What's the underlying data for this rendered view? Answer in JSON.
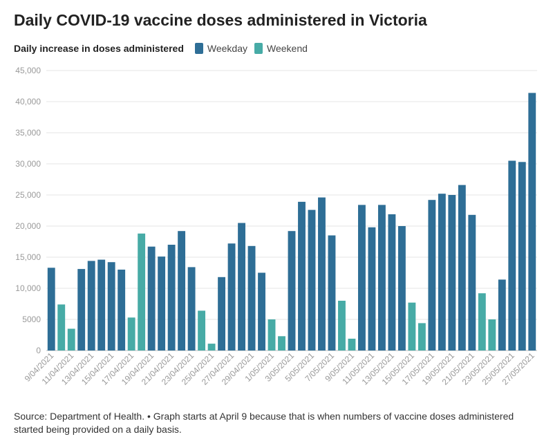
{
  "chart_data": {
    "type": "bar",
    "title": "Daily COVID-19 vaccine doses administered in Victoria",
    "legend_title": "Daily increase in doses administered",
    "series": [
      {
        "name": "Weekday",
        "color": "#2e6e96"
      },
      {
        "name": "Weekend",
        "color": "#47aba6"
      }
    ],
    "categories": [
      "9/04/2021",
      "10/04/2021",
      "11/04/2021",
      "12/04/2021",
      "13/04/2021",
      "14/04/2021",
      "15/04/2021",
      "16/04/2021",
      "17/04/2021",
      "18/04/2021",
      "19/04/2021",
      "20/04/2021",
      "21/04/2021",
      "22/04/2021",
      "23/04/2021",
      "24/04/2021",
      "25/04/2021",
      "26/04/2021",
      "27/04/2021",
      "28/04/2021",
      "29/04/2021",
      "30/04/2021",
      "1/05/2021",
      "2/05/2021",
      "3/05/2021",
      "4/05/2021",
      "5/05/2021",
      "6/05/2021",
      "7/05/2021",
      "8/05/2021",
      "9/05/2021",
      "10/05/2021",
      "11/05/2021",
      "12/05/2021",
      "13/05/2021",
      "14/05/2021",
      "15/05/2021",
      "16/05/2021",
      "17/05/2021",
      "18/05/2021",
      "19/05/2021",
      "20/05/2021",
      "21/05/2021",
      "22/05/2021",
      "23/05/2021",
      "24/05/2021",
      "25/05/2021",
      "26/05/2021",
      "27/05/2021"
    ],
    "values": [
      13300,
      7400,
      3500,
      13100,
      14400,
      14600,
      14200,
      13000,
      5300,
      18800,
      16700,
      15100,
      17000,
      19200,
      13400,
      6400,
      1100,
      11800,
      17200,
      20500,
      16800,
      12500,
      5000,
      2300,
      19200,
      23900,
      22600,
      24600,
      18500,
      8000,
      1900,
      23400,
      19800,
      23400,
      21900,
      20000,
      7700,
      4400,
      24200,
      25200,
      25000,
      26600,
      21800,
      9200,
      5000,
      11400,
      30500,
      30300,
      41400
    ],
    "day_type": [
      "Weekday",
      "Weekend",
      "Weekend",
      "Weekday",
      "Weekday",
      "Weekday",
      "Weekday",
      "Weekday",
      "Weekend",
      "Weekend",
      "Weekday",
      "Weekday",
      "Weekday",
      "Weekday",
      "Weekday",
      "Weekend",
      "Weekend",
      "Weekday",
      "Weekday",
      "Weekday",
      "Weekday",
      "Weekday",
      "Weekend",
      "Weekend",
      "Weekday",
      "Weekday",
      "Weekday",
      "Weekday",
      "Weekday",
      "Weekend",
      "Weekend",
      "Weekday",
      "Weekday",
      "Weekday",
      "Weekday",
      "Weekday",
      "Weekend",
      "Weekend",
      "Weekday",
      "Weekday",
      "Weekday",
      "Weekday",
      "Weekday",
      "Weekend",
      "Weekend",
      "Weekday",
      "Weekday",
      "Weekday",
      "Weekday"
    ],
    "x_tick_labels": [
      "9/04/2021",
      "11/04/2021",
      "13/04/2021",
      "15/04/2021",
      "17/04/2021",
      "19/04/2021",
      "21/04/2021",
      "23/04/2021",
      "25/04/2021",
      "27/04/2021",
      "29/04/2021",
      "1/05/2021",
      "3/05/2021",
      "5/05/2021",
      "7/05/2021",
      "9/05/2021",
      "11/05/2021",
      "13/05/2021",
      "15/05/2021",
      "17/05/2021",
      "19/05/2021",
      "21/05/2021",
      "23/05/2021",
      "25/05/2021",
      "27/05/2021"
    ],
    "y_ticks": [
      0,
      5000,
      10000,
      15000,
      20000,
      25000,
      30000,
      35000,
      40000,
      45000
    ],
    "y_tick_labels": [
      "0",
      "5000",
      "10,000",
      "15,000",
      "20,000",
      "25,000",
      "30,000",
      "35,000",
      "40,000",
      "45,000"
    ],
    "ylim": [
      0,
      45000
    ],
    "grid": true,
    "legend_position": "top-left",
    "source": "Source: Department of Health. • Graph starts at April 9 because that is when numbers of vaccine doses administered started being provided on a daily basis."
  }
}
